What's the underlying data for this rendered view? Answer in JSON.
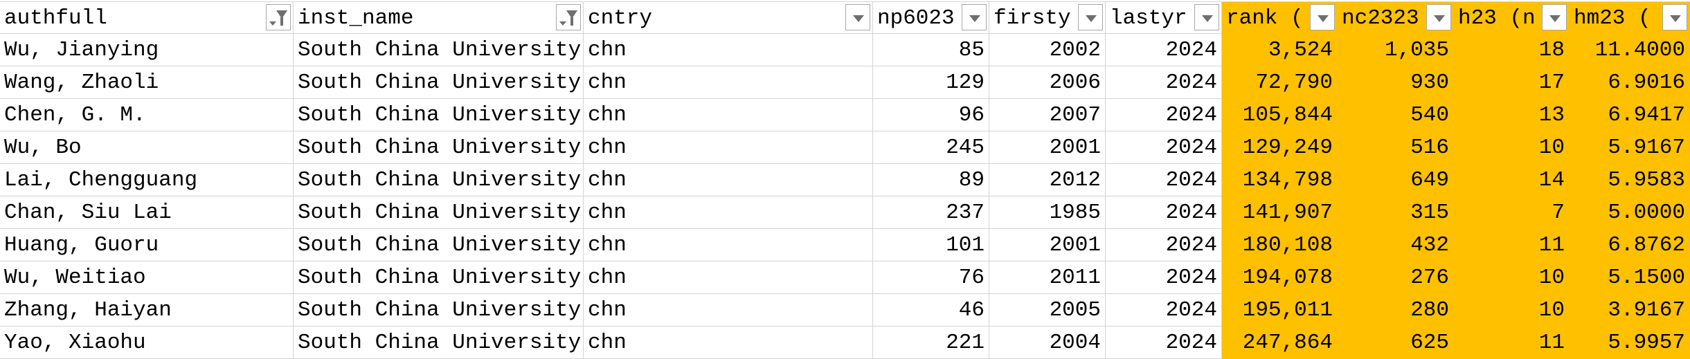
{
  "colors": {
    "highlight": "#FFC000",
    "gridline": "#d4d4d4"
  },
  "columns": [
    {
      "label": "authfull",
      "filter_icon": "funnel-filter-active-icon",
      "align": "left",
      "highlight": false
    },
    {
      "label": "inst_name",
      "filter_icon": "funnel-filter-active-icon",
      "align": "left",
      "highlight": false
    },
    {
      "label": "cntry",
      "filter_icon": "dropdown-arrow-icon",
      "align": "left",
      "highlight": false
    },
    {
      "label": "np6023",
      "filter_icon": "dropdown-arrow-icon",
      "align": "right",
      "highlight": false
    },
    {
      "label": "firsty",
      "filter_icon": "dropdown-arrow-icon",
      "align": "right",
      "highlight": false
    },
    {
      "label": "lastyr",
      "filter_icon": "dropdown-arrow-icon",
      "align": "right",
      "highlight": false
    },
    {
      "label": "rank (",
      "filter_icon": "dropdown-arrow-icon",
      "align": "right",
      "highlight": true
    },
    {
      "label": "nc2323",
      "filter_icon": "dropdown-arrow-icon",
      "align": "right",
      "highlight": true
    },
    {
      "label": "h23 (n",
      "filter_icon": "dropdown-arrow-icon",
      "align": "right",
      "highlight": true
    },
    {
      "label": "hm23 (",
      "filter_icon": "dropdown-arrow-icon",
      "align": "right",
      "highlight": true
    }
  ],
  "rows": [
    [
      "Wu, Jianying",
      "South China University",
      "chn",
      "85",
      "2002",
      "2024",
      "3,524",
      "1,035",
      "18",
      "11.4000"
    ],
    [
      "Wang, Zhaoli",
      "South China University",
      "chn",
      "129",
      "2006",
      "2024",
      "72,790",
      "930",
      "17",
      "6.9016"
    ],
    [
      "Chen, G. M.",
      "South China University",
      "chn",
      "96",
      "2007",
      "2024",
      "105,844",
      "540",
      "13",
      "6.9417"
    ],
    [
      "Wu, Bo",
      "South China University",
      "chn",
      "245",
      "2001",
      "2024",
      "129,249",
      "516",
      "10",
      "5.9167"
    ],
    [
      "Lai, Chengguang",
      "South China University",
      "chn",
      "89",
      "2012",
      "2024",
      "134,798",
      "649",
      "14",
      "5.9583"
    ],
    [
      "Chan, Siu Lai",
      "South China University",
      "chn",
      "237",
      "1985",
      "2024",
      "141,907",
      "315",
      "7",
      "5.0000"
    ],
    [
      "Huang, Guoru",
      "South China University",
      "chn",
      "101",
      "2001",
      "2024",
      "180,108",
      "432",
      "11",
      "6.8762"
    ],
    [
      "Wu, Weitiao",
      "South China University",
      "chn",
      "76",
      "2011",
      "2024",
      "194,078",
      "276",
      "10",
      "5.1500"
    ],
    [
      "Zhang, Haiyan",
      "South China University",
      "chn",
      "46",
      "2005",
      "2024",
      "195,011",
      "280",
      "10",
      "3.9167"
    ],
    [
      "Yao, Xiaohu",
      "South China University",
      "chn",
      "221",
      "2004",
      "2024",
      "247,864",
      "625",
      "11",
      "5.9957"
    ]
  ]
}
